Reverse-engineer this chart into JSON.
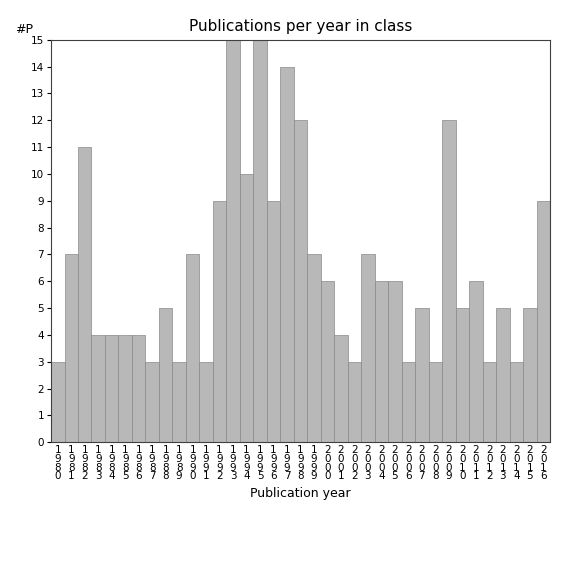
{
  "title": "Publications per year in class",
  "xlabel": "Publication year",
  "ylabel": "#P",
  "years": [
    1980,
    1981,
    1982,
    1983,
    1984,
    1985,
    1986,
    1987,
    1988,
    1989,
    1990,
    1991,
    1992,
    1993,
    1994,
    1995,
    1996,
    1997,
    1998,
    1999,
    2000,
    2001,
    2002,
    2003,
    2004,
    2005,
    2006,
    2007,
    2008,
    2009,
    2010,
    2011,
    2012,
    2013,
    2014,
    2015,
    2016
  ],
  "values": [
    3,
    7,
    11,
    4,
    4,
    4,
    4,
    3,
    5,
    3,
    7,
    3,
    9,
    15,
    10,
    15,
    9,
    14,
    12,
    7,
    6,
    4,
    3,
    7,
    6,
    6,
    3,
    5,
    3,
    12,
    5,
    6,
    3,
    5,
    3,
    5,
    9
  ],
  "bar_color": "#b8b8b8",
  "bar_edgecolor": "#888888",
  "ylim": [
    0,
    15
  ],
  "yticks": [
    0,
    1,
    2,
    3,
    4,
    5,
    6,
    7,
    8,
    9,
    10,
    11,
    12,
    13,
    14,
    15
  ],
  "background_color": "#ffffff",
  "title_fontsize": 11,
  "label_fontsize": 9,
  "tick_fontsize": 7.5
}
